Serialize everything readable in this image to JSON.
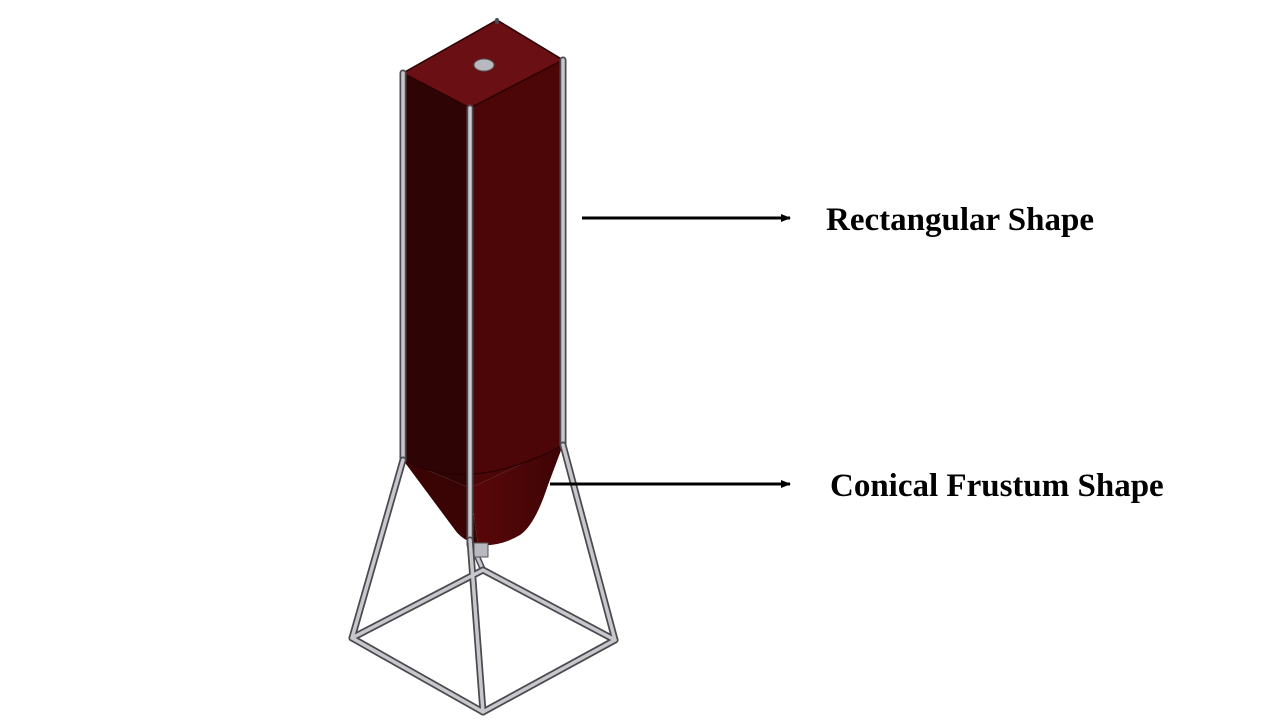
{
  "labels": {
    "rectangular": "Rectangular Shape",
    "conical": "Conical Frustum Shape"
  },
  "colors": {
    "body_front": "#4d0608",
    "body_left": "#2e0405",
    "body_top": "#6a0f13",
    "frame": "#c8c8cc",
    "frame_edge": "#4a4a50",
    "outlet": "#b8b8c0",
    "arrow": "#000000",
    "text": "#000000"
  }
}
